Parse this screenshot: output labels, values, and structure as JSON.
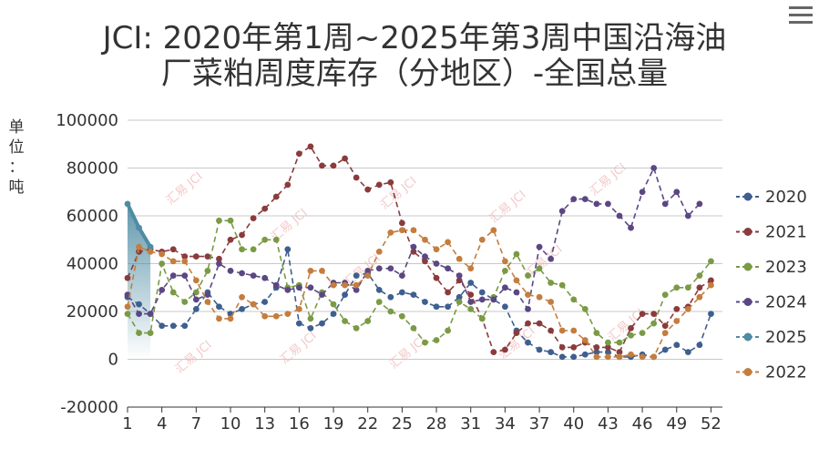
{
  "menu_icon": "hamburger-menu-icon",
  "watermark": "汇易 JCI",
  "chart_data": {
    "type": "line",
    "title_lines": [
      "JCI: 2020年第1周~2025年第3周中国沿海油",
      "厂菜粕周度库存（分地区）-全国总量"
    ],
    "ylabel_chars": [
      "单",
      "位",
      "：",
      "吨"
    ],
    "ylim": [
      -20000,
      100000
    ],
    "yticks": [
      -20000,
      0,
      20000,
      40000,
      60000,
      80000,
      100000
    ],
    "yticklabels": [
      "-20000",
      "0",
      "20000",
      "40000",
      "60000",
      "80000",
      "100000"
    ],
    "xlim": [
      1,
      53
    ],
    "xticks": [
      1,
      4,
      7,
      10,
      13,
      16,
      19,
      22,
      25,
      28,
      31,
      34,
      37,
      40,
      43,
      46,
      49,
      52
    ],
    "xticklabels": [
      "1",
      "4",
      "7",
      "10",
      "13",
      "16",
      "19",
      "22",
      "25",
      "28",
      "31",
      "34",
      "37",
      "40",
      "43",
      "46",
      "49",
      "52"
    ],
    "legend_position": "right",
    "series": [
      {
        "name": "2020",
        "color": "#3e5f8f",
        "values": [
          26000,
          23000,
          19000,
          14000,
          14000,
          14000,
          21000,
          28000,
          22000,
          19000,
          21000,
          23000,
          24000,
          30000,
          46000,
          15000,
          13000,
          15000,
          19000,
          27000,
          35000,
          36000,
          29000,
          26000,
          28000,
          27000,
          24000,
          22000,
          22000,
          26000,
          32000,
          28000,
          25000,
          22000,
          12000,
          7000,
          4000,
          3000,
          1000,
          1000,
          2000,
          3000,
          3000,
          1000,
          1000,
          2000,
          1000,
          4000,
          6000,
          3000,
          6000,
          19000
        ]
      },
      {
        "name": "2021",
        "color": "#8a3b3c",
        "values": [
          34000,
          45000,
          46000,
          45000,
          46000,
          43000,
          43000,
          43000,
          42000,
          50000,
          52000,
          59000,
          63000,
          68000,
          73000,
          86000,
          89000,
          81000,
          81000,
          84000,
          76000,
          71000,
          73000,
          74000,
          57000,
          45000,
          41000,
          34000,
          28000,
          33000,
          27000,
          17000,
          3000,
          4000,
          11000,
          15000,
          15000,
          12000,
          5000,
          5000,
          7000,
          5000,
          5000,
          3000,
          13000,
          19000,
          19000,
          14000,
          21000,
          22000,
          30000,
          33000
        ]
      },
      {
        "name": "2023",
        "color": "#7a9a45",
        "values": [
          19000,
          11000,
          11000,
          40000,
          28000,
          24000,
          28000,
          37000,
          58000,
          58000,
          46000,
          46000,
          50000,
          50000,
          30000,
          31000,
          17000,
          28000,
          23000,
          16000,
          13000,
          16000,
          24000,
          20000,
          18000,
          13000,
          7000,
          8000,
          12000,
          24000,
          21000,
          17000,
          26000,
          37000,
          44000,
          35000,
          38000,
          32000,
          31000,
          25000,
          21000,
          11000,
          7000,
          7000,
          10000,
          11000,
          15000,
          27000,
          30000,
          30000,
          35000,
          41000
        ]
      },
      {
        "name": "2024",
        "color": "#5b4783",
        "values": [
          27000,
          19000,
          19000,
          29000,
          35000,
          35000,
          25000,
          27000,
          40000,
          37000,
          36000,
          35000,
          34000,
          31000,
          29000,
          30000,
          30000,
          27000,
          32000,
          32000,
          29000,
          37000,
          38000,
          38000,
          35000,
          47000,
          43000,
          40000,
          38000,
          35000,
          24000,
          25000,
          25000,
          30000,
          28000,
          21000,
          47000,
          42000,
          62000,
          67000,
          67000,
          65000,
          65000,
          60000,
          55000,
          70000,
          80000,
          65000,
          70000,
          60000,
          65000,
          null
        ]
      },
      {
        "name": "2025",
        "color": "#4f8ca3",
        "values": [
          65000,
          55000,
          47000,
          null,
          null,
          null,
          null,
          null,
          null,
          null,
          null,
          null,
          null,
          null,
          null,
          null,
          null,
          null,
          null,
          null,
          null,
          null,
          null,
          null,
          null,
          null,
          null,
          null,
          null,
          null,
          null,
          null,
          null,
          null,
          null,
          null,
          null,
          null,
          null,
          null,
          null,
          null,
          null,
          null,
          null,
          null,
          null,
          null,
          null,
          null,
          null,
          null
        ]
      },
      {
        "name": "2022",
        "color": "#c47d3e",
        "values": [
          22000,
          47000,
          45000,
          44000,
          41000,
          41000,
          33000,
          24000,
          17000,
          17000,
          26000,
          23000,
          18000,
          18000,
          19000,
          21000,
          37000,
          37000,
          31000,
          31000,
          31000,
          35000,
          45000,
          53000,
          54000,
          54000,
          50000,
          46000,
          49000,
          42000,
          38000,
          50000,
          54000,
          41000,
          33000,
          27000,
          26000,
          24000,
          12000,
          12000,
          8000,
          1000,
          1000,
          1000,
          2000,
          1000,
          1000,
          11000,
          16000,
          21000,
          26000,
          31000
        ]
      }
    ]
  }
}
